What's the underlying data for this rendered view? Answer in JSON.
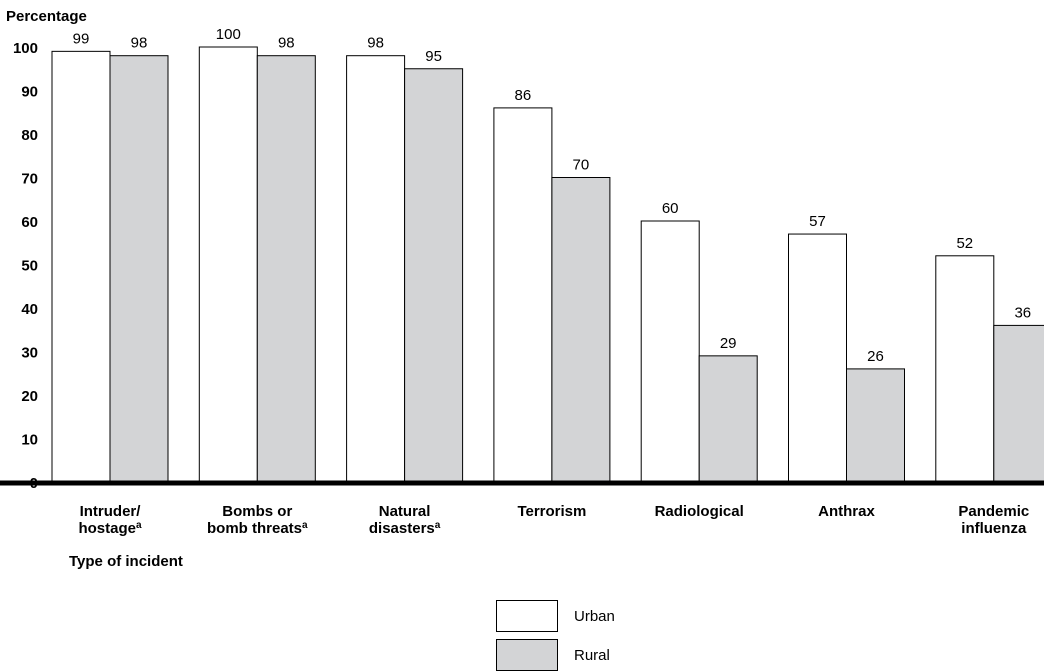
{
  "chart_data": {
    "type": "bar",
    "title": "",
    "ylabel": "Percentage",
    "xlabel": "Type of incident",
    "ylim": [
      0,
      100
    ],
    "yticks": [
      0,
      10,
      20,
      30,
      40,
      50,
      60,
      70,
      80,
      90,
      100
    ],
    "grid": false,
    "legend_position": "bottom-center",
    "categories": [
      "Intruder/\nhostagea",
      "Bombs or\nbomb threatsa",
      "Natural\ndisastersa",
      "Terrorism",
      "Radiological",
      "Anthrax",
      "Pandemic\ninfluenza"
    ],
    "category_labels": [
      [
        "Intruder/",
        {
          "text": "hostage",
          "sup": "a"
        }
      ],
      [
        "Bombs or",
        {
          "text": "bomb threats",
          "sup": "a"
        }
      ],
      [
        "Natural",
        {
          "text": "disasters",
          "sup": "a"
        }
      ],
      [
        "Terrorism"
      ],
      [
        "Radiological"
      ],
      [
        "Anthrax"
      ],
      [
        "Pandemic",
        "influenza"
      ]
    ],
    "series": [
      {
        "name": "Urban",
        "color": "#ffffff",
        "values": [
          99,
          100,
          98,
          86,
          60,
          57,
          52
        ]
      },
      {
        "name": "Rural",
        "color": "#d3d4d6",
        "values": [
          98,
          98,
          95,
          70,
          29,
          26,
          36
        ]
      }
    ]
  }
}
